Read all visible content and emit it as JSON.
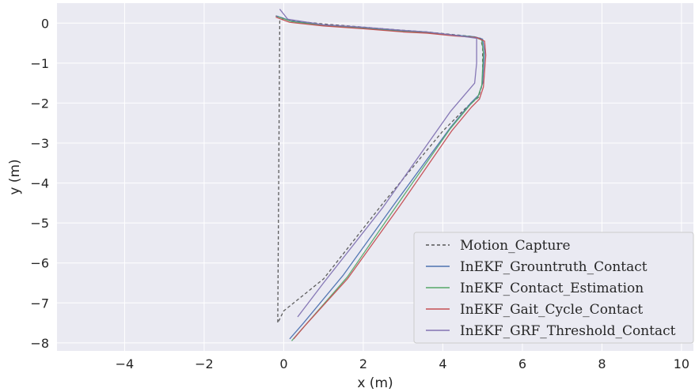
{
  "chart_data": {
    "type": "line",
    "xlabel": "x (m)",
    "ylabel": "y (m)",
    "xlim": [
      -5.7,
      10.3
    ],
    "ylim": [
      -8.2,
      0.5
    ],
    "xticks": [
      -4,
      -2,
      0,
      2,
      4,
      6,
      8,
      10
    ],
    "yticks": [
      0,
      -1,
      -2,
      -3,
      -4,
      -5,
      -6,
      -7,
      -8
    ],
    "xtick_labels": [
      "−4",
      "−2",
      "0",
      "2",
      "4",
      "6",
      "8",
      "10"
    ],
    "ytick_labels": [
      "0",
      "−1",
      "−2",
      "−3",
      "−4",
      "−5",
      "−6",
      "−7",
      "−8"
    ],
    "grid": true,
    "legend_position": "lower-right",
    "series": [
      {
        "name": "Motion_Capture",
        "color": "#555555",
        "dash": true,
        "x": [
          -0.2,
          0.2,
          1.0,
          2.0,
          3.0,
          3.6,
          4.2,
          4.7,
          4.95,
          5.0,
          5.0,
          4.9,
          4.6,
          4.0,
          2.5,
          1.0,
          0.0,
          -0.15,
          -0.1,
          0.0
        ],
        "y": [
          0.18,
          0.06,
          -0.02,
          -0.1,
          -0.18,
          -0.22,
          -0.28,
          -0.33,
          -0.38,
          -0.6,
          -1.5,
          -1.85,
          -2.1,
          -2.7,
          -4.5,
          -6.4,
          -7.2,
          -7.5,
          0.05,
          0.12
        ]
      },
      {
        "name": "InEKF_Grountruth_Contact",
        "color": "#4c72b0",
        "dash": false,
        "x": [
          -0.18,
          0.2,
          1.0,
          2.0,
          3.0,
          3.6,
          4.3,
          4.8,
          5.0,
          5.05,
          5.0,
          4.9,
          4.7,
          4.2,
          2.8,
          1.5,
          0.5,
          0.15
        ],
        "y": [
          0.18,
          0.05,
          -0.05,
          -0.12,
          -0.2,
          -0.23,
          -0.3,
          -0.34,
          -0.4,
          -0.7,
          -1.5,
          -1.8,
          -2.0,
          -2.6,
          -4.5,
          -6.3,
          -7.5,
          -7.9
        ]
      },
      {
        "name": "InEKF_Contact_Estimation",
        "color": "#55a868",
        "dash": false,
        "x": [
          -0.15,
          0.2,
          1.0,
          2.0,
          3.0,
          3.6,
          4.3,
          4.8,
          4.98,
          5.02,
          4.98,
          4.88,
          4.68,
          4.18,
          2.85,
          1.6,
          0.55,
          0.2
        ],
        "y": [
          0.16,
          0.04,
          -0.06,
          -0.13,
          -0.21,
          -0.24,
          -0.31,
          -0.35,
          -0.42,
          -0.75,
          -1.55,
          -1.85,
          -2.05,
          -2.65,
          -4.55,
          -6.35,
          -7.55,
          -7.95
        ]
      },
      {
        "name": "InEKF_Gait_Cycle_Contact",
        "color": "#c44e52",
        "dash": false,
        "x": [
          -0.2,
          0.15,
          1.0,
          2.0,
          3.0,
          3.6,
          4.3,
          4.85,
          5.05,
          5.08,
          5.02,
          4.92,
          4.72,
          4.22,
          2.9,
          1.6,
          0.55,
          0.25
        ],
        "y": [
          0.15,
          0.02,
          -0.07,
          -0.14,
          -0.22,
          -0.25,
          -0.32,
          -0.36,
          -0.45,
          -0.8,
          -1.6,
          -1.9,
          -2.1,
          -2.7,
          -4.6,
          -6.4,
          -7.55,
          -7.9
        ]
      },
      {
        "name": "InEKF_GRF_Threshold_Contact",
        "color": "#8172b2",
        "dash": false,
        "x": [
          -0.1,
          0.1,
          1.0,
          2.0,
          3.0,
          3.6,
          4.3,
          4.85,
          4.85,
          4.85,
          4.8,
          4.2,
          2.5,
          1.0,
          0.35
        ],
        "y": [
          0.35,
          0.1,
          -0.04,
          -0.1,
          -0.18,
          -0.22,
          -0.3,
          -0.38,
          -0.5,
          -1.0,
          -1.5,
          -2.2,
          -4.6,
          -6.5,
          -7.35
        ]
      }
    ]
  }
}
